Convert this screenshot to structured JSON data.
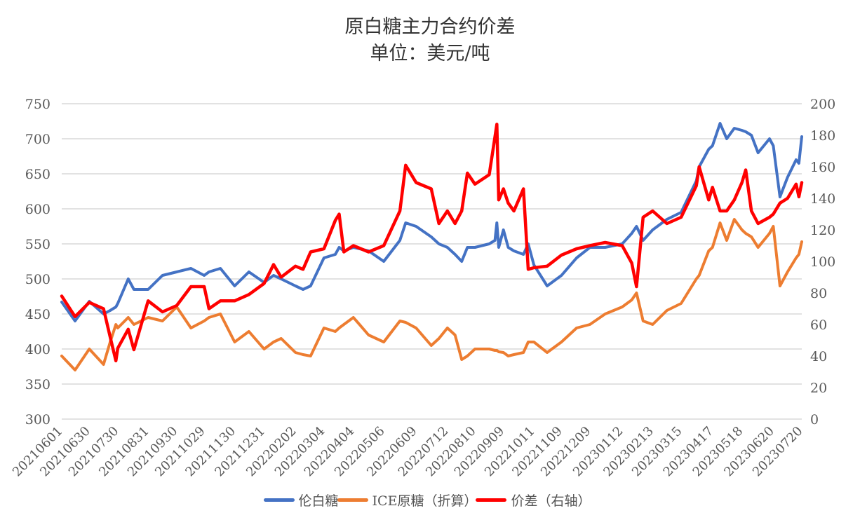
{
  "chart_data": {
    "type": "line",
    "title": "原白糖主力合约价差",
    "subtitle": "单位：美元/吨",
    "y_left": {
      "min": 300,
      "max": 750,
      "step": 50
    },
    "y_right": {
      "min": 0,
      "max": 200,
      "step": 20
    },
    "grid": true,
    "legend_position": "bottom",
    "x_tick_labels": [
      "20210601",
      "20210630",
      "20210730",
      "20210831",
      "20210930",
      "20211029",
      "20211130",
      "20211231",
      "20220202",
      "20220304",
      "20220404",
      "20220506",
      "20220609",
      "20220712",
      "20220810",
      "20220909",
      "20221011",
      "20221109",
      "20221209",
      "20230112",
      "20230213",
      "20230315",
      "20230417",
      "20230518",
      "20230620",
      "20230720"
    ],
    "x": [
      "20210601",
      "20210615",
      "20210630",
      "20210715",
      "20210722",
      "20210728",
      "20210730",
      "20210810",
      "20210816",
      "20210831",
      "20210915",
      "20210930",
      "20211015",
      "20211029",
      "20211103",
      "20211115",
      "20211130",
      "20211215",
      "20211231",
      "20220110",
      "20220118",
      "20220202",
      "20220210",
      "20220218",
      "20220304",
      "20220316",
      "20220320",
      "20220325",
      "20220404",
      "20220420",
      "20220506",
      "20220523",
      "20220529",
      "20220609",
      "20220625",
      "20220703",
      "20220712",
      "20220720",
      "20220727",
      "20220802",
      "20220810",
      "20220825",
      "20220831",
      "20220902",
      "20220904",
      "20220909",
      "20220914",
      "20220920",
      "20220930",
      "20221005",
      "20221011",
      "20221025",
      "20221109",
      "20221125",
      "20221209",
      "20221225",
      "20230112",
      "20230122",
      "20230127",
      "20230203",
      "20230213",
      "20230228",
      "20230315",
      "20230331",
      "20230403",
      "20230413",
      "20230417",
      "20230425",
      "20230502",
      "20230510",
      "20230518",
      "20230522",
      "20230528",
      "20230604",
      "20230616",
      "20230620",
      "20230627",
      "20230705",
      "20230714",
      "20230717",
      "20230720"
    ],
    "series": [
      {
        "name": "伦白糖",
        "axis": "left",
        "color": "#4472C4",
        "values": [
          467,
          440,
          468,
          450,
          455,
          460,
          465,
          500,
          485,
          485,
          505,
          510,
          515,
          505,
          510,
          515,
          490,
          510,
          495,
          505,
          500,
          490,
          485,
          490,
          530,
          535,
          545,
          540,
          545,
          540,
          525,
          555,
          580,
          575,
          560,
          550,
          545,
          535,
          525,
          545,
          545,
          550,
          555,
          580,
          545,
          570,
          545,
          540,
          535,
          550,
          520,
          490,
          505,
          530,
          545,
          545,
          550,
          565,
          575,
          555,
          570,
          585,
          595,
          640,
          660,
          685,
          690,
          722,
          700,
          715,
          712,
          710,
          705,
          680,
          700,
          690,
          617,
          645,
          670,
          665,
          703
        ]
      },
      {
        "name": "ICE原糖（折算）",
        "axis": "left",
        "color": "#ED7D31",
        "values": [
          390,
          370,
          400,
          378,
          410,
          435,
          430,
          445,
          435,
          445,
          440,
          460,
          430,
          440,
          445,
          450,
          410,
          425,
          400,
          410,
          415,
          395,
          392,
          390,
          430,
          425,
          430,
          435,
          445,
          420,
          410,
          440,
          438,
          430,
          405,
          415,
          430,
          420,
          385,
          390,
          400,
          400,
          398,
          398,
          396,
          395,
          390,
          392,
          395,
          410,
          410,
          395,
          410,
          430,
          435,
          450,
          460,
          470,
          480,
          440,
          435,
          455,
          465,
          500,
          505,
          540,
          545,
          580,
          555,
          585,
          570,
          565,
          560,
          545,
          565,
          575,
          490,
          510,
          530,
          535,
          553
        ]
      },
      {
        "name": "价差（右轴）",
        "axis": "right",
        "color": "#FF0000",
        "values": [
          78,
          65,
          74,
          70,
          52,
          37,
          45,
          57,
          44,
          75,
          68,
          72,
          84,
          84,
          70,
          75,
          75,
          79,
          86,
          98,
          90,
          97,
          95,
          106,
          108,
          126,
          130,
          106,
          110,
          106,
          110,
          132,
          161,
          150,
          146,
          124,
          132,
          124,
          132,
          156,
          149,
          155,
          179,
          187,
          139,
          146,
          137,
          132,
          146,
          95,
          96,
          97,
          104,
          108,
          110,
          112,
          110,
          99,
          84,
          128,
          132,
          124,
          128,
          148,
          160,
          139,
          147,
          132,
          132,
          139,
          150,
          158,
          132,
          124,
          128,
          130,
          137,
          140,
          149,
          141,
          150
        ]
      }
    ]
  }
}
